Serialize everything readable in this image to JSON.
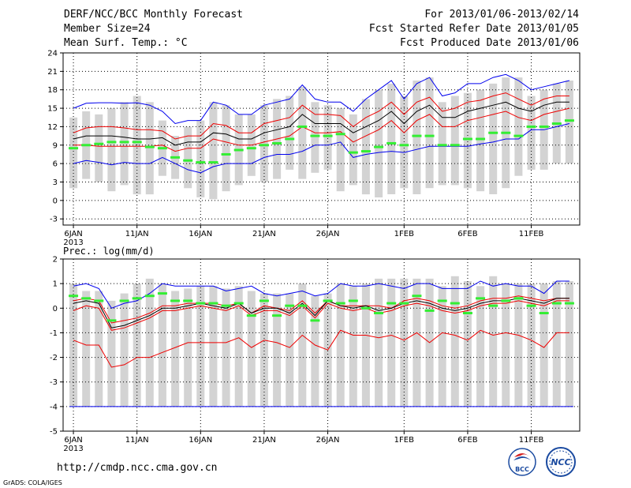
{
  "header": {
    "title": "DERF/NCC/BCC Monthly Forecast",
    "member_size": "Member Size=24",
    "variable": "Mean Surf. Temp.: °C",
    "period": "For 2013/01/06-2013/02/14",
    "fcst_started": "Fcst Started Refer Date 2013/01/05",
    "fcst_produced": "Fcst Produced Date 2013/01/06"
  },
  "footer": {
    "url": "http://cmdp.ncc.cma.gov.cn",
    "credit": "GrADS: COLA/IGES"
  },
  "logos": {
    "left": "BCC",
    "right": "NCC"
  },
  "colors": {
    "max_line": "#0000ee",
    "p75_line": "#ee0000",
    "mean_line": "#000000",
    "bar": "#d3d3d3",
    "obs": "#33ee33",
    "grid": "#000000"
  },
  "chart_data": [
    {
      "type": "bar",
      "title": "Mean Surf. Temp.: °C",
      "x_tick_labels": [
        "6JAN",
        "11JAN",
        "16JAN",
        "21JAN",
        "26JAN",
        "1FEB",
        "6FEB",
        "11FEB"
      ],
      "x_tick_days": [
        1,
        6,
        11,
        16,
        21,
        27,
        32,
        37
      ],
      "x_year_label": "2013",
      "ylim": [
        -4,
        24
      ],
      "yticks": [
        -3,
        0,
        3,
        6,
        9,
        12,
        15,
        18,
        21,
        24
      ],
      "ytick_labels": [
        "-3",
        "0",
        "3",
        "6",
        "9",
        "12",
        "15",
        "18",
        "21",
        "24"
      ],
      "bar_low": [
        2,
        3.5,
        3,
        1.5,
        2.5,
        1,
        1,
        4,
        3.5,
        2,
        0.5,
        0.2,
        1.5,
        2.5,
        4,
        3,
        3.5,
        5,
        3.5,
        4.5,
        5,
        1.5,
        2.5,
        1,
        0.5,
        1,
        2,
        1,
        2,
        2.5,
        2.5,
        2,
        1.5,
        1,
        2,
        4,
        5,
        5,
        6,
        6
      ],
      "bar_high": [
        13.5,
        14.5,
        14,
        15,
        16,
        17,
        16,
        13,
        10.5,
        12,
        13,
        16,
        15.5,
        14,
        14,
        15.5,
        16.5,
        17,
        18.5,
        16,
        15.5,
        15,
        14,
        16.5,
        18,
        19,
        17,
        19.5,
        20,
        16,
        17,
        17.5,
        18,
        19,
        20,
        20,
        17,
        18,
        19,
        19.5
      ],
      "series": [
        {
          "name": "max",
          "color": "#0000ee",
          "values": [
            15,
            15.8,
            15.9,
            15.9,
            15.8,
            15.9,
            15.5,
            14.5,
            12.5,
            13,
            13,
            16,
            15.5,
            14,
            14,
            15.5,
            16,
            16.5,
            18.8,
            16.5,
            16,
            16,
            14.5,
            16.5,
            18,
            19.5,
            16.5,
            19,
            20,
            17,
            17.5,
            19,
            19,
            20,
            20.5,
            19.5,
            18,
            18.5,
            19,
            19.5
          ]
        },
        {
          "name": "p75",
          "color": "#ee0000",
          "values": [
            11,
            11.8,
            12,
            12,
            11.8,
            11.5,
            11.5,
            11.3,
            10,
            10.5,
            10.5,
            12.5,
            12.2,
            11,
            11,
            12.5,
            13,
            13.5,
            15.5,
            14,
            14,
            13.8,
            12,
            13.5,
            14.5,
            16,
            14,
            16,
            16.8,
            14.5,
            15,
            16,
            16.3,
            17,
            17.5,
            16.5,
            15.5,
            16.5,
            17,
            17
          ]
        },
        {
          "name": "mean",
          "color": "#000000",
          "values": [
            10,
            10.5,
            10.5,
            10.5,
            10.3,
            10,
            10,
            10.2,
            9,
            9.5,
            9.5,
            11,
            10.8,
            10,
            10,
            11,
            11.5,
            12,
            14,
            12.5,
            12.5,
            12.5,
            11,
            12,
            13,
            14.5,
            12.5,
            14.5,
            15.5,
            13.5,
            13.5,
            14.5,
            15,
            15.5,
            16,
            15,
            14.5,
            15.5,
            16,
            16
          ]
        },
        {
          "name": "p25",
          "color": "#ee0000",
          "values": [
            9,
            9,
            8.8,
            8.8,
            8.8,
            8.8,
            8.8,
            9,
            8,
            8.5,
            8.5,
            10,
            9.5,
            9,
            9,
            9.5,
            10,
            10.5,
            12,
            11,
            11,
            11.2,
            9.5,
            10.5,
            11.5,
            13,
            11,
            13,
            14,
            12,
            12,
            13,
            13.5,
            14,
            14.5,
            13.5,
            13,
            14,
            14.5,
            15
          ]
        },
        {
          "name": "min",
          "color": "#0000ee",
          "values": [
            6,
            6.5,
            6.2,
            5.8,
            6.2,
            6,
            6,
            7,
            6,
            5,
            4.5,
            5.5,
            6,
            6,
            6,
            7,
            7.5,
            7.5,
            8,
            9,
            9,
            9.5,
            7,
            7.5,
            7.8,
            8,
            7.8,
            8.3,
            8.8,
            8.8,
            8.8,
            8.8,
            9.2,
            9.5,
            10,
            10,
            11.5,
            11.5,
            12,
            12.5
          ]
        },
        {
          "name": "obs",
          "color": "#33ee33",
          "values": [
            8.5,
            9,
            9.2,
            9.5,
            9.5,
            9.5,
            8.7,
            8.5,
            7,
            6.5,
            6.2,
            6.2,
            7.5,
            8.2,
            8.5,
            9,
            9.3,
            10,
            12,
            10.5,
            10.5,
            10.8,
            7.8,
            8,
            8.7,
            9.3,
            9,
            10.5,
            10.5,
            9,
            9,
            10,
            10,
            11,
            11,
            10.5,
            12,
            12,
            12.5,
            13
          ]
        }
      ]
    },
    {
      "type": "bar",
      "title": "Prec.: log(mm/d)",
      "x_tick_labels": [
        "6JAN",
        "11JAN",
        "16JAN",
        "21JAN",
        "26JAN",
        "1FEB",
        "6FEB",
        "11FEB"
      ],
      "x_tick_days": [
        1,
        6,
        11,
        16,
        21,
        27,
        32,
        37
      ],
      "x_year_label": "2013",
      "ylim": [
        -5,
        2
      ],
      "yticks": [
        -5,
        -4,
        -3,
        -2,
        -1,
        0,
        1,
        2
      ],
      "ytick_labels": [
        "-5",
        "-4",
        "-3",
        "-2",
        "-1",
        "0",
        "1",
        "2"
      ],
      "bar_low": -4,
      "bar_high": [
        1,
        0.7,
        0.7,
        0.3,
        0.6,
        1,
        1.2,
        1,
        0.7,
        0.8,
        0.9,
        0.9,
        0.8,
        0.9,
        0.7,
        0.6,
        0.6,
        0.6,
        1,
        0.5,
        0.6,
        1,
        0.9,
        1,
        1.2,
        1.2,
        1.2,
        1.2,
        1.2,
        0.9,
        1.3,
        1.1,
        0.9,
        1.3,
        1,
        1,
        1,
        1,
        1.1,
        1.1
      ],
      "series": [
        {
          "name": "max",
          "color": "#0000ee",
          "values": [
            0.9,
            1,
            0.8,
            0,
            0.2,
            0.3,
            0.6,
            1,
            0.9,
            0.9,
            0.9,
            0.9,
            0.7,
            0.8,
            0.9,
            0.6,
            0.5,
            0.6,
            0.7,
            0.5,
            0.6,
            1,
            0.9,
            0.9,
            1,
            0.9,
            0.8,
            1,
            1,
            0.8,
            0.8,
            0.8,
            1.1,
            0.9,
            1,
            0.9,
            0.9,
            0.6,
            1.1,
            1.1
          ]
        },
        {
          "name": "p75",
          "color": "#ee0000",
          "values": [
            0.3,
            0.4,
            0.3,
            -0.6,
            -0.5,
            -0.4,
            -0.2,
            0.1,
            0.1,
            0.2,
            0.2,
            0.2,
            0.1,
            0.2,
            -0.2,
            0.1,
            0,
            -0.1,
            0.3,
            -0.2,
            0.3,
            0.1,
            0.1,
            0.1,
            0.1,
            0,
            0.3,
            0.4,
            0.3,
            0.1,
            0,
            0.1,
            0.3,
            0.4,
            0.4,
            0.5,
            0.4,
            0.3,
            0.4,
            0.4
          ]
        },
        {
          "name": "mean",
          "color": "#000000",
          "values": [
            0.2,
            0.3,
            0.2,
            -0.8,
            -0.7,
            -0.5,
            -0.3,
            0,
            0,
            0.1,
            0.2,
            0.1,
            0,
            0.2,
            -0.2,
            0,
            0,
            -0.2,
            0.2,
            -0.3,
            0.3,
            0.1,
            0,
            0.1,
            -0.1,
            0,
            0.2,
            0.3,
            0.2,
            0,
            -0.1,
            0,
            0.2,
            0.3,
            0.3,
            0.4,
            0.3,
            0.2,
            0.4,
            0.4
          ]
        },
        {
          "name": "p25",
          "color": "#ee0000",
          "values": [
            -0.1,
            0.1,
            0,
            -0.9,
            -0.8,
            -0.6,
            -0.4,
            -0.1,
            -0.1,
            0,
            0.1,
            0,
            -0.1,
            0.1,
            -0.3,
            -0.1,
            -0.1,
            -0.3,
            0.1,
            -0.4,
            0.2,
            0,
            -0.1,
            0,
            -0.2,
            -0.1,
            0.1,
            0.2,
            0.1,
            -0.1,
            -0.2,
            -0.1,
            0.1,
            0.2,
            0.2,
            0.3,
            0.2,
            0.1,
            0.3,
            0.3
          ]
        },
        {
          "name": "min",
          "color": "#ee0000",
          "values": [
            -1.3,
            -1.5,
            -1.5,
            -2.4,
            -2.3,
            -2,
            -2,
            -1.8,
            -1.6,
            -1.4,
            -1.4,
            -1.4,
            -1.4,
            -1.2,
            -1.6,
            -1.3,
            -1.4,
            -1.6,
            -1.1,
            -1.5,
            -1.7,
            -0.9,
            -1.1,
            -1.1,
            -1.2,
            -1.1,
            -1.3,
            -1,
            -1.4,
            -1,
            -1.1,
            -1.3,
            -0.9,
            -1.1,
            -1,
            -1.1,
            -1.3,
            -1.6,
            -1,
            -1
          ]
        },
        {
          "name": "obs",
          "color": "#33ee33",
          "values": [
            0.5,
            0.4,
            0.3,
            -0.5,
            0.3,
            0.4,
            0.5,
            0.6,
            0.3,
            0.3,
            0.2,
            0.2,
            0.1,
            0.2,
            -0.3,
            0.3,
            -0.3,
            0.1,
            0.1,
            -0.5,
            0.3,
            0.2,
            0.3,
            0,
            -0.2,
            0.2,
            0.2,
            0.5,
            -0.1,
            0.3,
            0.2,
            -0.2,
            0.4,
            0.1,
            0.3,
            0.4,
            0.1,
            -0.2,
            0.2,
            0.2
          ]
        }
      ]
    },
    {
      "type": "table",
      "panel_label": "Prec.: log(mm/d)"
    }
  ]
}
